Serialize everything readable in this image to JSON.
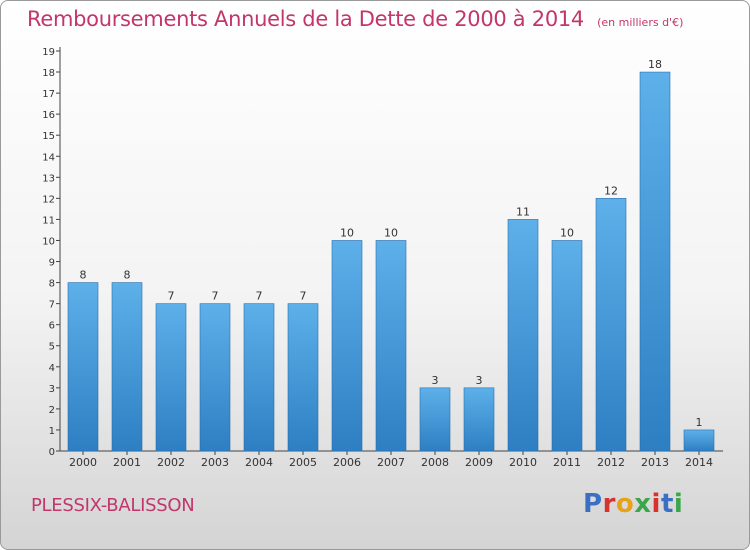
{
  "chart_data": {
    "type": "bar",
    "title": "Remboursements Annuels de la Dette de 2000 à 2014",
    "subtitle": "(en milliers d'€)",
    "categories": [
      "2000",
      "2001",
      "2002",
      "2003",
      "2004",
      "2005",
      "2006",
      "2007",
      "2008",
      "2009",
      "2010",
      "2011",
      "2012",
      "2013",
      "2014"
    ],
    "values": [
      8,
      8,
      7,
      7,
      7,
      7,
      10,
      10,
      3,
      3,
      11,
      10,
      12,
      18,
      1
    ],
    "ylim": [
      0,
      19
    ],
    "yticks": [
      0,
      1,
      2,
      3,
      4,
      5,
      6,
      7,
      8,
      9,
      10,
      11,
      12,
      13,
      14,
      15,
      16,
      17,
      18,
      19
    ],
    "grid": false,
    "colors": {
      "bar_light": "#5eb0ea",
      "bar_dark": "#2d7fc2",
      "title": "#c2366b"
    }
  },
  "footer": {
    "commune": "PLESSIX-BALISSON",
    "logo": "Proxiti"
  }
}
